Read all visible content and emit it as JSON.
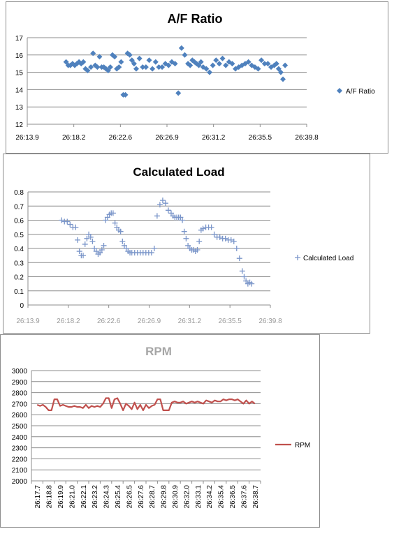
{
  "chart_data": [
    {
      "type": "scatter",
      "title": "A/F Ratio",
      "xlabel": "",
      "ylabel": "",
      "ylim": [
        12,
        17
      ],
      "y_ticks": [
        12,
        13,
        14,
        15,
        16,
        17
      ],
      "xlim_minutes": [
        13.9,
        39.8
      ],
      "x_tick_labels": [
        "26:13.9",
        "26:18.2",
        "26:22.6",
        "26:26.9",
        "26:31.2",
        "26:35.5",
        "26:39.8"
      ],
      "grid": "horizontal",
      "legend": "right",
      "color": "#4f81bd",
      "series": [
        {
          "name": "A/F Ratio",
          "x_minutes": [
            17.5,
            17.7,
            17.9,
            18.1,
            18.3,
            18.5,
            18.7,
            18.9,
            19.1,
            19.3,
            19.5,
            19.8,
            20.0,
            20.2,
            20.4,
            20.6,
            20.8,
            21.0,
            21.2,
            21.4,
            21.6,
            21.8,
            22.0,
            22.2,
            22.4,
            22.6,
            22.8,
            23.0,
            23.2,
            23.4,
            23.6,
            23.8,
            24.0,
            24.3,
            24.6,
            24.9,
            25.2,
            25.5,
            25.8,
            26.1,
            26.4,
            26.7,
            27.0,
            27.3,
            27.6,
            27.9,
            28.2,
            28.5,
            28.8,
            29.0,
            29.2,
            29.4,
            29.6,
            29.8,
            30.0,
            30.2,
            30.5,
            30.8,
            31.1,
            31.4,
            31.7,
            32.0,
            32.3,
            32.6,
            32.9,
            33.2,
            33.5,
            33.8,
            34.1,
            34.4,
            34.7,
            35.0,
            35.3,
            35.6,
            35.9,
            36.2,
            36.5,
            36.8,
            37.0,
            37.2,
            37.4,
            37.6,
            37.8
          ],
          "y": [
            15.6,
            15.4,
            15.4,
            15.5,
            15.4,
            15.5,
            15.6,
            15.5,
            15.6,
            15.2,
            15.1,
            15.3,
            16.1,
            15.4,
            15.3,
            15.9,
            15.3,
            15.3,
            15.2,
            15.1,
            15.3,
            16.0,
            15.9,
            15.2,
            15.3,
            15.6,
            13.7,
            13.7,
            16.1,
            16.0,
            15.7,
            15.5,
            15.2,
            15.8,
            15.3,
            15.3,
            15.7,
            15.2,
            15.6,
            15.3,
            15.3,
            15.5,
            15.4,
            15.6,
            15.5,
            13.8,
            16.4,
            16.0,
            15.5,
            15.4,
            15.7,
            15.6,
            15.5,
            15.4,
            15.6,
            15.3,
            15.2,
            15.0,
            15.4,
            15.7,
            15.5,
            15.8,
            15.4,
            15.6,
            15.5,
            15.2,
            15.3,
            15.4,
            15.5,
            15.6,
            15.4,
            15.3,
            15.2,
            15.7,
            15.5,
            15.5,
            15.3,
            15.4,
            15.5,
            15.2,
            15.0,
            14.6,
            15.4
          ]
        }
      ]
    },
    {
      "type": "scatter",
      "title": "Calculated Load",
      "xlabel": "",
      "ylabel": "",
      "ylim": [
        0,
        0.8
      ],
      "y_tick_labels": [
        "0",
        "0.1",
        "0.2",
        "0.3",
        "0.4",
        "0.5",
        "0.6",
        "0.7",
        "0.8"
      ],
      "xlim_minutes": [
        13.9,
        39.8
      ],
      "x_tick_labels": [
        "26:13.9",
        "26:18.2",
        "26:22.6",
        "26:26.9",
        "26:31.2",
        "26:35.5",
        "26:39.8"
      ],
      "grid": "horizontal",
      "legend": "right",
      "color": "#7a95c9",
      "series": [
        {
          "name": "Calculated Load",
          "x_minutes": [
            17.5,
            17.8,
            18.1,
            18.4,
            18.7,
            19.0,
            19.2,
            19.4,
            19.6,
            19.8,
            20.0,
            20.2,
            20.4,
            20.6,
            20.8,
            21.0,
            21.2,
            21.4,
            21.6,
            21.8,
            22.0,
            22.2,
            22.4,
            22.6,
            22.8,
            23.0,
            23.2,
            23.4,
            23.6,
            23.8,
            24.0,
            24.2,
            24.4,
            24.6,
            24.8,
            25.0,
            25.3,
            25.6,
            25.9,
            26.2,
            26.5,
            26.8,
            27.1,
            27.4,
            27.7,
            28.0,
            28.3,
            28.6,
            28.9,
            29.2,
            29.4,
            29.6,
            29.8,
            30.0,
            30.2,
            30.4,
            30.6,
            30.8,
            31.0,
            31.2,
            31.4,
            31.6,
            31.8,
            32.0,
            32.2,
            32.4,
            32.6,
            32.9,
            33.2,
            33.5,
            33.8,
            34.1,
            34.4,
            34.7,
            35.0,
            35.3,
            35.6,
            35.9,
            36.2,
            36.5,
            36.8,
            37.0,
            37.2,
            37.4,
            37.6,
            37.8
          ],
          "y": [
            0.6,
            0.59,
            0.59,
            0.57,
            0.55,
            0.55,
            0.46,
            0.38,
            0.35,
            0.35,
            0.43,
            0.47,
            0.5,
            0.48,
            0.45,
            0.4,
            0.38,
            0.36,
            0.37,
            0.39,
            0.42,
            0.6,
            0.62,
            0.64,
            0.65,
            0.65,
            0.58,
            0.55,
            0.53,
            0.52,
            0.45,
            0.42,
            0.4,
            0.38,
            0.37,
            0.37,
            0.37,
            0.37,
            0.37,
            0.37,
            0.37,
            0.37,
            0.37,
            0.4,
            0.63,
            0.71,
            0.74,
            0.72,
            0.67,
            0.65,
            0.63,
            0.62,
            0.62,
            0.62,
            0.62,
            0.6,
            0.52,
            0.47,
            0.42,
            0.4,
            0.39,
            0.39,
            0.38,
            0.39,
            0.45,
            0.53,
            0.54,
            0.55,
            0.55,
            0.55,
            0.5,
            0.48,
            0.48,
            0.47,
            0.47,
            0.46,
            0.46,
            0.45,
            0.4,
            0.33,
            0.24,
            0.2,
            0.17,
            0.15,
            0.16,
            0.15
          ]
        }
      ]
    },
    {
      "type": "line",
      "title": "RPM",
      "xlabel": "",
      "ylabel": "",
      "ylim": [
        2000,
        3000
      ],
      "y_ticks": [
        2000,
        2100,
        2200,
        2300,
        2400,
        2500,
        2600,
        2700,
        2800,
        2900,
        3000
      ],
      "categories": [
        "26:17.7",
        "26:18.8",
        "26:19.9",
        "26:21.0",
        "26:22.1",
        "26:23.2",
        "26:24.3",
        "26:25.4",
        "26:26.5",
        "26:27.6",
        "26:28.7",
        "26:29.8",
        "26:30.9",
        "26:32.0",
        "26:33.1",
        "26:34.2",
        "26:35.4",
        "26:36.5",
        "26:37.6",
        "26:38.7"
      ],
      "grid": "horizontal",
      "legend": "right",
      "color": "#c0504d",
      "series": [
        {
          "name": "RPM",
          "x": [
            0.0,
            0.25,
            0.5,
            0.75,
            1.0,
            1.25,
            1.5,
            1.75,
            2.0,
            2.25,
            2.5,
            2.75,
            3.0,
            3.25,
            3.5,
            3.75,
            4.0,
            4.25,
            4.5,
            4.75,
            5.0,
            5.25,
            5.5,
            5.75,
            6.0,
            6.25,
            6.5,
            6.75,
            7.0,
            7.25,
            7.5,
            7.75,
            8.0,
            8.25,
            8.5,
            8.75,
            9.0,
            9.25,
            9.5,
            9.75,
            10.0,
            10.25,
            10.5,
            10.75,
            11.0,
            11.25,
            11.5,
            11.75,
            12.0,
            12.25,
            12.5,
            12.75,
            13.0,
            13.25,
            13.5,
            13.75,
            14.0,
            14.25,
            14.5,
            14.75,
            15.0,
            15.25,
            15.5,
            15.75,
            16.0,
            16.25,
            16.5,
            16.75,
            17.0,
            17.25,
            17.5,
            17.75,
            18.0,
            18.25,
            18.5,
            18.75,
            19.0
          ],
          "values": [
            2690,
            2680,
            2690,
            2670,
            2640,
            2640,
            2740,
            2740,
            2680,
            2690,
            2680,
            2670,
            2670,
            2680,
            2670,
            2670,
            2660,
            2690,
            2660,
            2680,
            2670,
            2680,
            2670,
            2700,
            2750,
            2750,
            2660,
            2740,
            2750,
            2700,
            2640,
            2700,
            2680,
            2650,
            2710,
            2650,
            2690,
            2640,
            2690,
            2660,
            2680,
            2690,
            2740,
            2740,
            2640,
            2640,
            2640,
            2710,
            2720,
            2710,
            2710,
            2720,
            2700,
            2710,
            2720,
            2710,
            2720,
            2710,
            2700,
            2730,
            2720,
            2710,
            2730,
            2720,
            2720,
            2740,
            2730,
            2740,
            2740,
            2730,
            2740,
            2720,
            2700,
            2730,
            2700,
            2720,
            2700
          ]
        }
      ]
    }
  ]
}
